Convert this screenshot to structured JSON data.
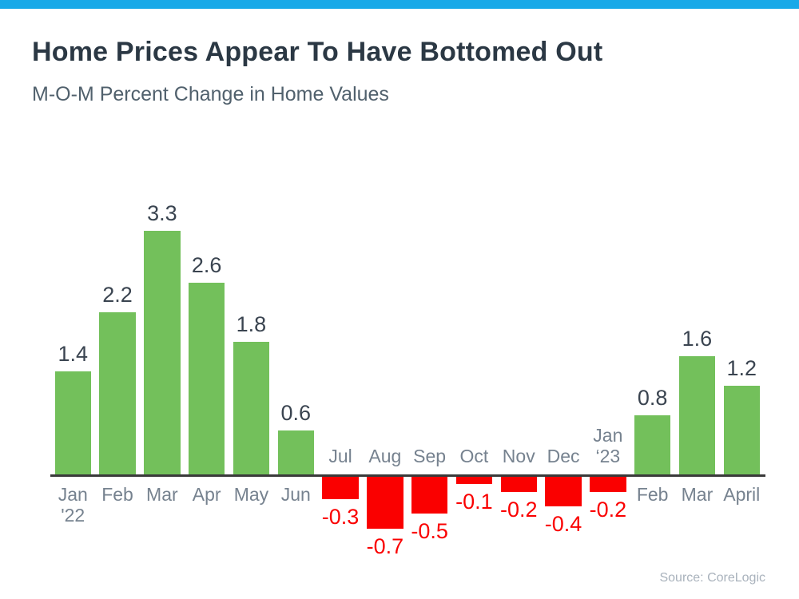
{
  "page": {
    "background": "#FFFFFF",
    "top_bar_color": "#18A9E8"
  },
  "header": {
    "title": "Home Prices Appear To Have Bottomed Out",
    "subtitle": "M-O-M Percent Change in Home Values"
  },
  "footer": {
    "source": "Source: CoreLogic"
  },
  "chart_data": {
    "type": "bar",
    "title": "Home Prices Appear To Have Bottomed Out",
    "subtitle": "M-O-M Percent Change in Home Values",
    "source": "Source: CoreLogic",
    "categories": [
      {
        "month": "Jan",
        "year": "'22"
      },
      {
        "month": "Feb",
        "year": ""
      },
      {
        "month": "Mar",
        "year": ""
      },
      {
        "month": "Apr",
        "year": ""
      },
      {
        "month": "May",
        "year": ""
      },
      {
        "month": "Jun",
        "year": ""
      },
      {
        "month": "Jul",
        "year": ""
      },
      {
        "month": "Aug",
        "year": ""
      },
      {
        "month": "Sep",
        "year": ""
      },
      {
        "month": "Oct",
        "year": ""
      },
      {
        "month": "Nov",
        "year": ""
      },
      {
        "month": "Dec",
        "year": ""
      },
      {
        "month": "Jan",
        "year": "‘23"
      },
      {
        "month": "Feb",
        "year": ""
      },
      {
        "month": "Mar",
        "year": ""
      },
      {
        "month": "April",
        "year": ""
      }
    ],
    "values": [
      1.4,
      2.2,
      3.3,
      2.6,
      1.8,
      0.6,
      -0.3,
      -0.7,
      -0.5,
      -0.1,
      -0.2,
      -0.4,
      -0.2,
      0.8,
      1.6,
      1.2
    ],
    "value_labels": [
      "1.4",
      "2.2",
      "3.3",
      "2.6",
      "1.8",
      "0.6",
      "-0.3",
      "-0.7",
      "-0.5",
      "-0.1",
      "-0.2",
      "-0.4",
      "-0.2",
      "0.8",
      "1.6",
      "1.2"
    ],
    "positive_color": "#73C05B",
    "negative_color": "#FA0000",
    "axis_color": "#3A3A3A",
    "positive_label_color": "#3A4450",
    "negative_label_color": "#FA0000",
    "month_label_color": "#76828F",
    "ylim": [
      -0.9,
      3.5
    ],
    "grid": false,
    "legend": false,
    "xlabel": "",
    "ylabel": ""
  }
}
